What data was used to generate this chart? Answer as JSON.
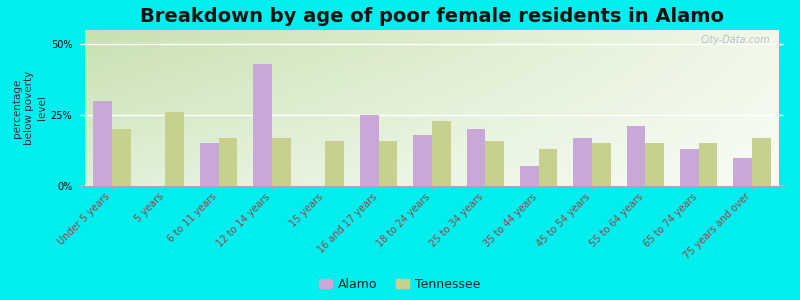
{
  "title": "Breakdown by age of poor female residents in Alamo",
  "ylabel": "percentage\nbelow poverty\nlevel",
  "categories": [
    "Under 5 years",
    "5 years",
    "6 to 11 years",
    "12 to 14 years",
    "15 years",
    "16 and 17 years",
    "18 to 24 years",
    "25 to 34 years",
    "35 to 44 years",
    "45 to 54 years",
    "55 to 64 years",
    "65 to 74 years",
    "75 years and over"
  ],
  "alamo_values": [
    30,
    0,
    15,
    43,
    0,
    25,
    18,
    20,
    7,
    17,
    21,
    13,
    10
  ],
  "tennessee_values": [
    20,
    26,
    17,
    17,
    16,
    16,
    23,
    16,
    13,
    15,
    15,
    15,
    17
  ],
  "alamo_color": "#c8a8d8",
  "tennessee_color": "#c8d090",
  "bg_outer": "#00eeee",
  "bg_plot_topleft": "#c8e0b0",
  "bg_plot_topright": "#e8f0d8",
  "bg_plot_bottom": "#f0f8e8",
  "bar_width": 0.35,
  "ylim": [
    0,
    55
  ],
  "ytick_labels": [
    "0%",
    "25%",
    "50%"
  ],
  "ytick_vals": [
    0,
    25,
    50
  ],
  "title_fontsize": 14,
  "axis_label_fontsize": 7.5,
  "tick_fontsize": 7,
  "legend_fontsize": 9,
  "watermark_text": "City-Data.com",
  "xticklabel_color": "#994444"
}
